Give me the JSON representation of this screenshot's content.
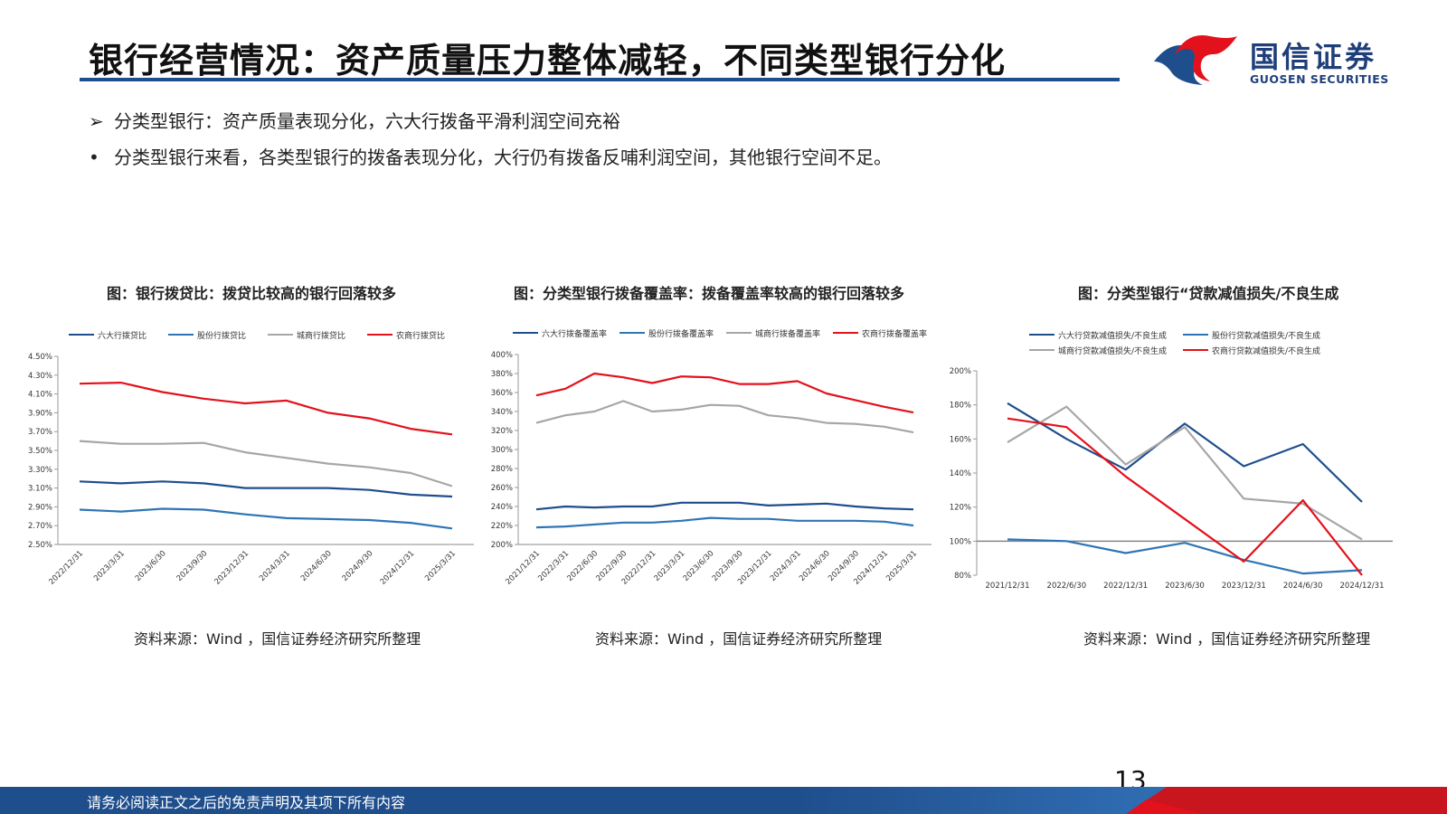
{
  "header": {
    "title": "银行经营情况：资产质量压力整体减轻，不同类型银行分化",
    "logo_cn": "国信证券",
    "logo_en": "GUOSEN SECURITIES"
  },
  "bullets": [
    {
      "marker": "➢",
      "text": "分类型银行：资产质量表现分化，六大行拨备平滑利润空间充裕"
    },
    {
      "marker": "•",
      "text": "分类型银行来看，各类型银行的拨备表现分化，大行仍有拨备反哺利润空间，其他银行空间不足。"
    }
  ],
  "colors": {
    "navy": "#1f4e8c",
    "blue": "#2e75b6",
    "gray": "#a6a6a6",
    "red": "#e3111b"
  },
  "chart_data": [
    {
      "type": "line",
      "title": "图：银行拨贷比：拨贷比较高的银行回落较多",
      "source": "资料来源：Wind ，国信证券经济研究所整理",
      "categories": [
        "2022/12/31",
        "2023/3/31",
        "2023/6/30",
        "2023/9/30",
        "2023/12/31",
        "2024/3/31",
        "2024/6/30",
        "2024/9/30",
        "2024/12/31",
        "2025/3/31"
      ],
      "ylim": [
        2.5,
        4.5
      ],
      "yticks": [
        "2.50%",
        "2.70%",
        "2.90%",
        "3.10%",
        "3.30%",
        "3.50%",
        "3.70%",
        "3.90%",
        "4.10%",
        "4.30%",
        "4.50%"
      ],
      "series": [
        {
          "name": "六大行拨贷比",
          "color": "#1f4e8c",
          "values": [
            3.17,
            3.15,
            3.17,
            3.15,
            3.1,
            3.1,
            3.1,
            3.08,
            3.03,
            3.01
          ]
        },
        {
          "name": "股份行拨贷比",
          "color": "#2e75b6",
          "values": [
            2.87,
            2.85,
            2.88,
            2.87,
            2.82,
            2.78,
            2.77,
            2.76,
            2.73,
            2.67
          ]
        },
        {
          "name": "城商行拨贷比",
          "color": "#a6a6a6",
          "values": [
            3.6,
            3.57,
            3.57,
            3.58,
            3.48,
            3.42,
            3.36,
            3.32,
            3.26,
            3.12
          ]
        },
        {
          "name": "农商行拨贷比",
          "color": "#e3111b",
          "values": [
            4.21,
            4.22,
            4.12,
            4.05,
            4.0,
            4.03,
            3.9,
            3.84,
            3.73,
            3.67
          ]
        }
      ]
    },
    {
      "type": "line",
      "title": "图：分类型银行拨备覆盖率：拨备覆盖率较高的银行回落较多",
      "source": "资料来源：Wind ，国信证券经济研究所整理",
      "categories": [
        "2021/12/31",
        "2022/3/31",
        "2022/6/30",
        "2022/9/30",
        "2022/12/31",
        "2023/3/31",
        "2023/6/30",
        "2023/9/30",
        "2023/12/31",
        "2024/3/31",
        "2024/6/30",
        "2024/9/30",
        "2024/12/31",
        "2025/3/31"
      ],
      "ylim": [
        200,
        400
      ],
      "yticks": [
        "200%",
        "220%",
        "240%",
        "260%",
        "280%",
        "300%",
        "320%",
        "340%",
        "360%",
        "380%",
        "400%"
      ],
      "series": [
        {
          "name": "六大行拨备覆盖率",
          "color": "#1f4e8c",
          "values": [
            237,
            240,
            239,
            240,
            240,
            244,
            244,
            244,
            241,
            242,
            243,
            240,
            238,
            237
          ]
        },
        {
          "name": "股份行拨备覆盖率",
          "color": "#2e75b6",
          "values": [
            218,
            219,
            221,
            223,
            223,
            225,
            228,
            227,
            227,
            225,
            225,
            225,
            224,
            220
          ]
        },
        {
          "name": "城商行拨备覆盖率",
          "color": "#a6a6a6",
          "values": [
            328,
            336,
            340,
            351,
            340,
            342,
            347,
            346,
            336,
            333,
            328,
            327,
            324,
            318
          ]
        },
        {
          "name": "农商行拨备覆盖率",
          "color": "#e3111b",
          "values": [
            357,
            364,
            380,
            376,
            370,
            377,
            376,
            369,
            369,
            372,
            359,
            352,
            345,
            339
          ]
        }
      ]
    },
    {
      "type": "line",
      "title": "图：分类型银行“贷款减值损失/不良生成",
      "source": "资料来源：Wind ，国信证券经济研究所整理",
      "categories": [
        "2021/12/31",
        "2022/6/30",
        "2022/12/31",
        "2023/6/30",
        "2023/12/31",
        "2024/6/30",
        "2024/12/31"
      ],
      "ylim": [
        80,
        200
      ],
      "yticks": [
        "80%",
        "100%",
        "120%",
        "140%",
        "160%",
        "180%",
        "200%"
      ],
      "series": [
        {
          "name": "六大行贷款减值损失/不良生成",
          "color": "#1f4e8c",
          "values": [
            181,
            160,
            142,
            169,
            144,
            157,
            123
          ]
        },
        {
          "name": "股份行贷款减值损失/不良生成",
          "color": "#2e75b6",
          "values": [
            101,
            100,
            93,
            99,
            89,
            81,
            83
          ]
        },
        {
          "name": "城商行贷款减值损失/不良生成",
          "color": "#a6a6a6",
          "values": [
            158,
            179,
            145,
            167,
            125,
            122,
            101
          ]
        },
        {
          "name": "农商行贷款减值损失/不良生成",
          "color": "#e3111b",
          "values": [
            172,
            167,
            138,
            113,
            88,
            124,
            80
          ]
        }
      ]
    }
  ],
  "footer": {
    "page_number": "13",
    "disclaimer": "请务必阅读正文之后的免责声明及其项下所有内容"
  }
}
